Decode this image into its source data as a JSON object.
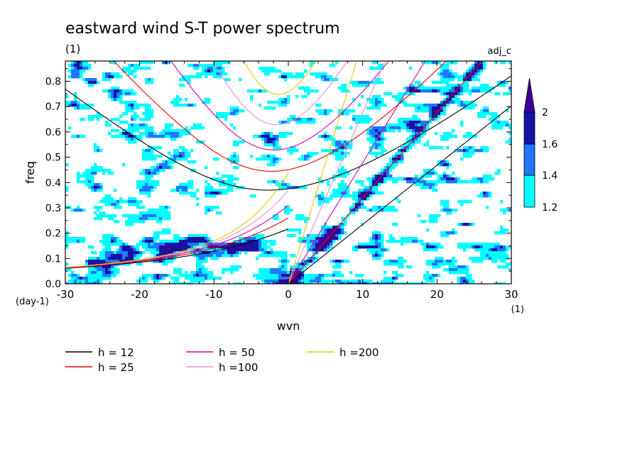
{
  "chart_data": {
    "type": "heatmap",
    "title": "eastward wind S-T power spectrum",
    "subtitle_left": "(1)",
    "subtitle_right": "adj_c",
    "xlabel": "wvn",
    "ylabel": "freq",
    "x_unit": "(1)",
    "y_unit": "(day-1)",
    "xlim": [
      -30,
      30
    ],
    "ylim": [
      0,
      0.88
    ],
    "x_ticks": [
      -30,
      -20,
      -10,
      0,
      10,
      20,
      30
    ],
    "x_tick_labels": [
      "-30",
      "-20",
      "-10",
      "0",
      "10",
      "20",
      "30"
    ],
    "y_ticks": [
      0,
      0.1,
      0.2,
      0.3,
      0.4,
      0.5,
      0.6,
      0.7,
      0.8
    ],
    "y_tick_labels": [
      "0.0",
      "0.1",
      "0.2",
      "0.3",
      "0.4",
      "0.5",
      "0.6",
      "0.7",
      "0.8"
    ],
    "colorbar": {
      "levels": [
        1.2,
        1.4,
        1.6,
        2
      ],
      "labels": [
        "1.2",
        "1.4",
        "1.6",
        "2"
      ],
      "colors": [
        "#00ffff",
        "#1e78ff",
        "#1414a0",
        "#3c0096"
      ]
    },
    "dispersion_series": [
      {
        "name": "h = 12",
        "h": 12,
        "color": "#000000"
      },
      {
        "name": "h = 25",
        "h": 25,
        "color": "#e60000"
      },
      {
        "name": "h = 50",
        "h": 50,
        "color": "#d200b4"
      },
      {
        "name": "h =100",
        "h": 100,
        "color": "#e68ce6"
      },
      {
        "name": "h =200",
        "h": 200,
        "color": "#e6c800"
      }
    ]
  }
}
